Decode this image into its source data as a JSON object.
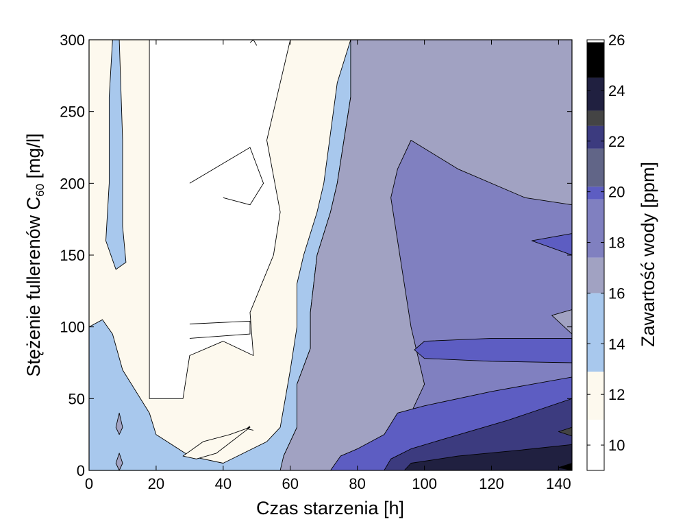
{
  "chart_data": {
    "type": "contour",
    "xlabel": "Czas starzenia [h]",
    "ylabel_main": "Stężenie fullerenów C",
    "ylabel_sub": "60",
    "ylabel_unit": " [mg/l]",
    "colorbar_label": "Zawartość wody [ppm]",
    "xlim": [
      0,
      144
    ],
    "ylim": [
      0,
      300
    ],
    "x_ticks": [
      0,
      20,
      40,
      60,
      80,
      100,
      120,
      140
    ],
    "y_ticks": [
      0,
      50,
      100,
      150,
      200,
      250,
      300
    ],
    "colorbar_range": [
      9,
      26
    ],
    "colorbar_ticks": [
      10,
      12,
      14,
      16,
      18,
      20,
      22,
      24,
      26
    ],
    "grid": false,
    "levels": [
      {
        "from": 9.2,
        "to": 11.0,
        "color": "#ffffff"
      },
      {
        "from": 11.0,
        "to": 12.9,
        "color": "#fdf9ee"
      },
      {
        "from": 12.9,
        "to": 16.0,
        "color": "#a8c8ed"
      },
      {
        "from": 16.0,
        "to": 17.4,
        "color": "#a1a2c2"
      },
      {
        "from": 17.4,
        "to": 19.7,
        "color": "#8080c0"
      },
      {
        "from": 19.7,
        "to": 20.2,
        "color": "#5d5dc2"
      },
      {
        "from": 20.2,
        "to": 21.7,
        "color": "#616587"
      },
      {
        "from": 21.7,
        "to": 22.6,
        "color": "#3c3b7f"
      },
      {
        "from": 22.6,
        "to": 23.2,
        "color": "#444444"
      },
      {
        "from": 23.2,
        "to": 24.5,
        "color": "#202040"
      },
      {
        "from": 24.5,
        "to": 25.9,
        "color": "#000000"
      }
    ],
    "regions": [
      {
        "level": 0,
        "points": [
          [
            18,
            300
          ],
          [
            48,
            300
          ],
          [
            60,
            300
          ],
          [
            53,
            230
          ],
          [
            57,
            180
          ],
          [
            55,
            150
          ],
          [
            48,
            110
          ],
          [
            49,
            80
          ],
          [
            40,
            90
          ],
          [
            30,
            80
          ],
          [
            28,
            50
          ],
          [
            18,
            50
          ],
          [
            18,
            160
          ],
          [
            18,
            250
          ]
        ]
      },
      {
        "level": 2,
        "points": [
          [
            60,
            300
          ],
          [
            78,
            300
          ],
          [
            74,
            270
          ],
          [
            70,
            200
          ],
          [
            68,
            180
          ],
          [
            64,
            150
          ],
          [
            62,
            130
          ],
          [
            62,
            100
          ],
          [
            60,
            70
          ],
          [
            57,
            30
          ],
          [
            53,
            20
          ],
          [
            40,
            5
          ],
          [
            30,
            10
          ],
          [
            20,
            25
          ],
          [
            18,
            40
          ],
          [
            10,
            70
          ],
          [
            7,
            95
          ],
          [
            4,
            105
          ],
          [
            0,
            100
          ],
          [
            0,
            0
          ],
          [
            58,
            0
          ],
          [
            58,
            10
          ],
          [
            62,
            30
          ],
          [
            62,
            60
          ],
          [
            66,
            85
          ],
          [
            66,
            110
          ],
          [
            68,
            150
          ],
          [
            72,
            180
          ],
          [
            74,
            200
          ],
          [
            76,
            230
          ],
          [
            78,
            260
          ],
          [
            80,
            300
          ]
        ]
      },
      {
        "level": 1,
        "points": [
          [
            48,
            30
          ],
          [
            38,
            12
          ],
          [
            32,
            8
          ],
          [
            28,
            10
          ],
          [
            34,
            20
          ],
          [
            42,
            25
          ]
        ]
      },
      {
        "level": 2,
        "points": [
          [
            7,
            300
          ],
          [
            9,
            300
          ],
          [
            10,
            230
          ],
          [
            10,
            170
          ],
          [
            11,
            145
          ],
          [
            8,
            140
          ],
          [
            5,
            160
          ],
          [
            6,
            200
          ],
          [
            6,
            260
          ]
        ]
      },
      {
        "level": 3,
        "points": [
          [
            78,
            300
          ],
          [
            96,
            300
          ],
          [
            144,
            300
          ],
          [
            144,
            0
          ],
          [
            57,
            0
          ],
          [
            58,
            10
          ],
          [
            62,
            30
          ],
          [
            62,
            60
          ],
          [
            66,
            85
          ],
          [
            66,
            110
          ],
          [
            68,
            150
          ],
          [
            72,
            180
          ],
          [
            74,
            200
          ],
          [
            76,
            230
          ],
          [
            78,
            260
          ]
        ]
      },
      {
        "level": 4,
        "points": [
          [
            96,
            230
          ],
          [
            110,
            210
          ],
          [
            130,
            190
          ],
          [
            144,
            185
          ],
          [
            144,
            0
          ],
          [
            88,
            0
          ],
          [
            90,
            10
          ],
          [
            92,
            20
          ],
          [
            96,
            40
          ],
          [
            100,
            60
          ],
          [
            98,
            80
          ],
          [
            96,
            100
          ],
          [
            94,
            130
          ],
          [
            92,
            160
          ],
          [
            90,
            190
          ],
          [
            92,
            210
          ]
        ]
      },
      {
        "level": 5,
        "points": [
          [
            100,
            90
          ],
          [
            120,
            92
          ],
          [
            144,
            92
          ],
          [
            144,
            75
          ],
          [
            120,
            76
          ],
          [
            100,
            78
          ],
          [
            97,
            84
          ]
        ]
      },
      {
        "level": 5,
        "points": [
          [
            144,
            165
          ],
          [
            132,
            160
          ],
          [
            144,
            150
          ]
        ]
      },
      {
        "level": 5,
        "points": [
          [
            144,
            65
          ],
          [
            120,
            55
          ],
          [
            100,
            45
          ],
          [
            92,
            40
          ],
          [
            88,
            25
          ],
          [
            80,
            15
          ],
          [
            75,
            10
          ],
          [
            72,
            0
          ],
          [
            144,
            0
          ]
        ]
      },
      {
        "level": 3,
        "points": [
          [
            144,
            95
          ],
          [
            138,
            108
          ],
          [
            144,
            112
          ]
        ]
      },
      {
        "level": 7,
        "points": [
          [
            144,
            50
          ],
          [
            125,
            35
          ],
          [
            106,
            22
          ],
          [
            96,
            15
          ],
          [
            90,
            8
          ],
          [
            88,
            0
          ],
          [
            144,
            0
          ]
        ]
      },
      {
        "level": 9,
        "points": [
          [
            144,
            18
          ],
          [
            128,
            14
          ],
          [
            110,
            10
          ],
          [
            96,
            5
          ],
          [
            94,
            0
          ],
          [
            144,
            0
          ]
        ]
      },
      {
        "level": 10,
        "points": [
          [
            144,
            5
          ],
          [
            140,
            2
          ],
          [
            144,
            0
          ]
        ]
      },
      {
        "level": 8,
        "points": [
          [
            144,
            30
          ],
          [
            140,
            27
          ],
          [
            144,
            24
          ]
        ]
      },
      {
        "level": 3,
        "points": [
          [
            9,
            40
          ],
          [
            8,
            30
          ],
          [
            9,
            25
          ],
          [
            10,
            30
          ]
        ]
      },
      {
        "level": 3,
        "points": [
          [
            9,
            12
          ],
          [
            8,
            5
          ],
          [
            9,
            0
          ],
          [
            10,
            5
          ]
        ]
      }
    ],
    "contour_lines": [
      [
        [
          30,
          200
        ],
        [
          48,
          225
        ],
        [
          52,
          200
        ],
        [
          48,
          185
        ],
        [
          40,
          190
        ]
      ],
      [
        [
          30,
          102
        ],
        [
          48,
          104
        ],
        [
          48,
          95
        ],
        [
          30,
          92
        ]
      ],
      [
        [
          48,
          298
        ],
        [
          49,
          300
        ],
        [
          50,
          296
        ]
      ],
      [
        [
          48,
          31
        ],
        [
          47,
          29
        ],
        [
          49,
          28
        ]
      ]
    ]
  }
}
